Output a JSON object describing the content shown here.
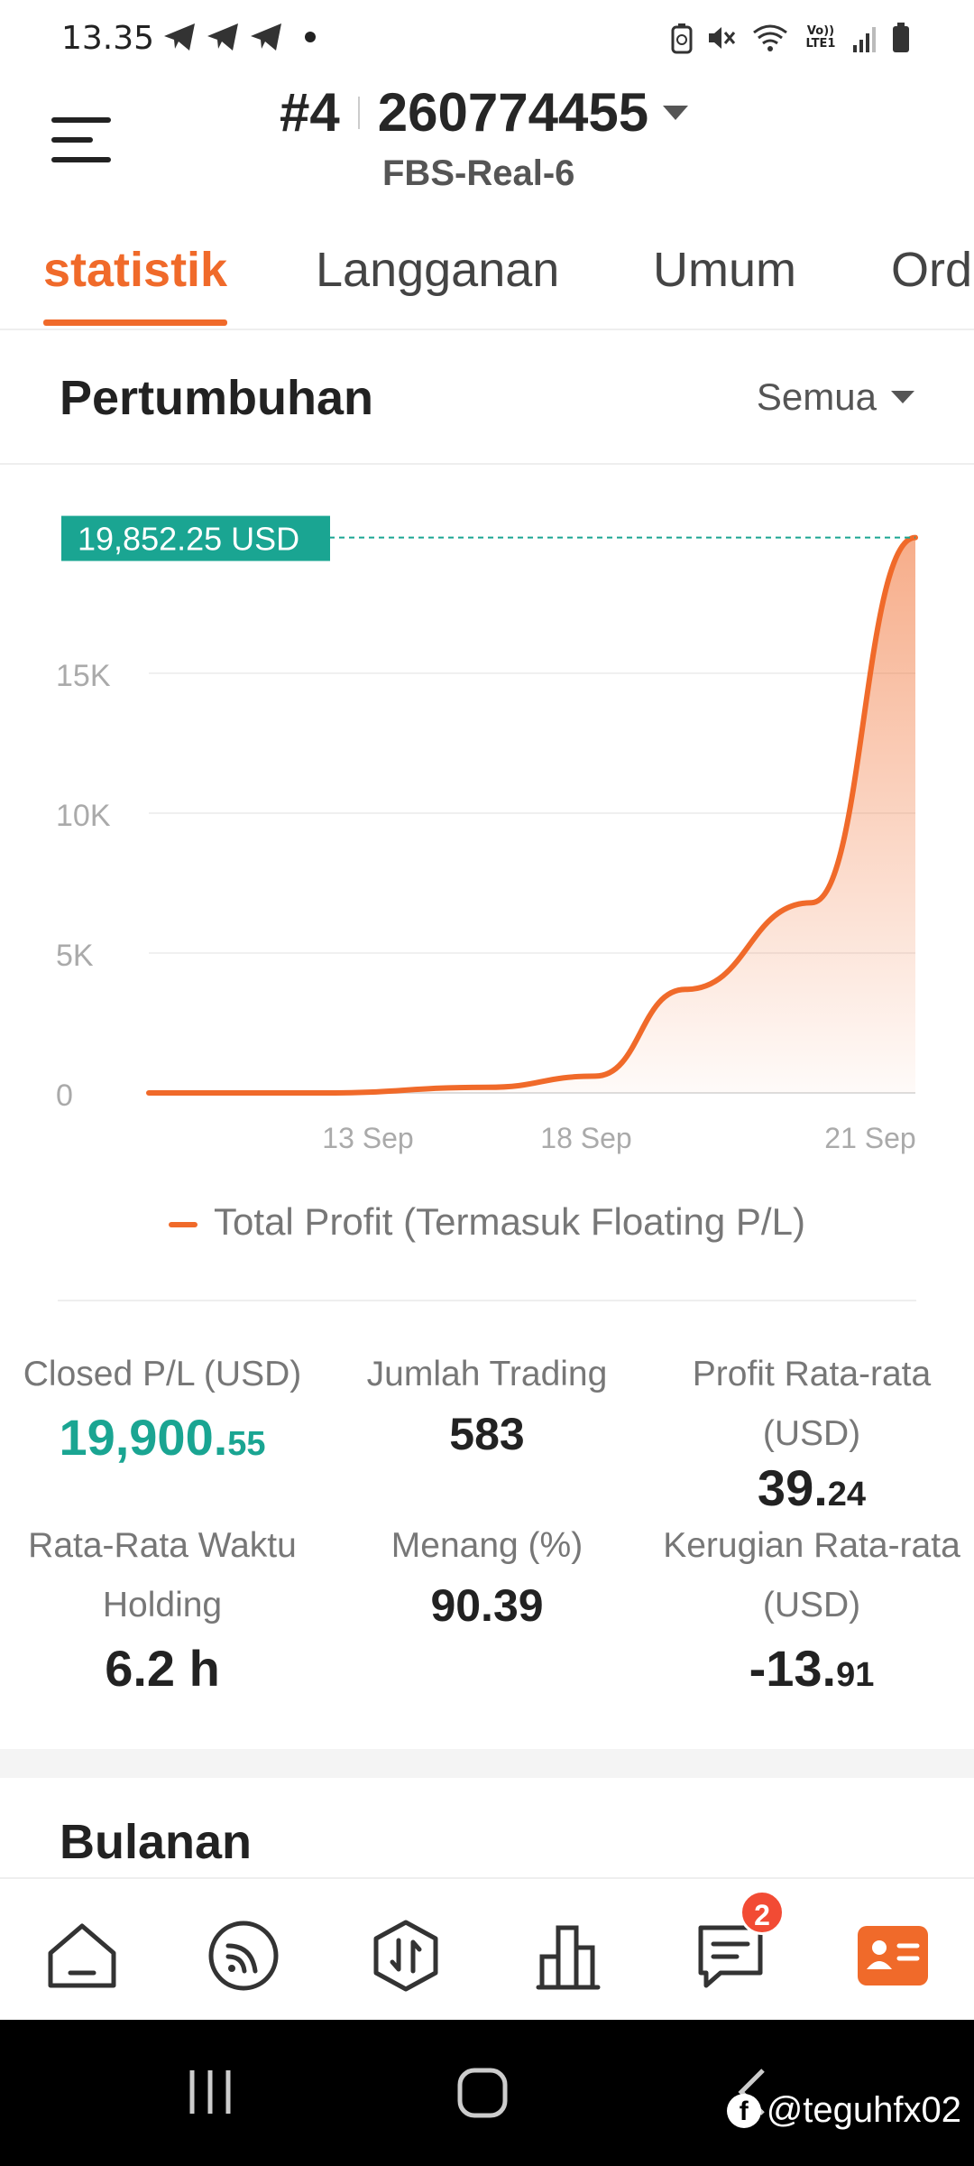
{
  "status_bar": {
    "time": "13.35",
    "network_label": "Vo)) LTE1"
  },
  "header": {
    "account_number": "#4",
    "account_id": "260774455",
    "server": "FBS-Real-6"
  },
  "tabs": [
    {
      "label": "statistik",
      "active": true
    },
    {
      "label": "Langganan",
      "active": false
    },
    {
      "label": "Umum",
      "active": false
    },
    {
      "label": "Ord",
      "active": false
    }
  ],
  "growth": {
    "title": "Pertumbuhan",
    "filter": "Semua"
  },
  "chart_data": {
    "type": "area",
    "x": [
      "start",
      "13 Sep",
      "15 Sep",
      "18 Sep",
      "19 Sep",
      "20 Sep",
      "21 Sep"
    ],
    "series": [
      {
        "name": "Total Profit (Termasuk Floating P/L)",
        "values": [
          0,
          0,
          200,
          600,
          3700,
          6800,
          19852.25
        ]
      }
    ],
    "x_tick_labels": [
      "13 Sep",
      "18 Sep",
      "21 Sep"
    ],
    "y_tick_labels": [
      "0",
      "5K",
      "10K",
      "15K"
    ],
    "ylim": [
      0,
      20000
    ],
    "latest_value_label": "19,852.25 USD",
    "grid": true,
    "legend": "bottom",
    "color": "#f06a2a"
  },
  "stats": {
    "closed_pl": {
      "label": "Closed P/L (USD)",
      "value_main": "19,900.",
      "value_dec": "55"
    },
    "total_trades": {
      "label": "Jumlah Trading",
      "value": "583"
    },
    "avg_profit": {
      "label1": "Profit Rata-rata",
      "label2": "(USD)",
      "value_main": "39.",
      "value_dec": "24"
    },
    "avg_holding": {
      "label1": "Rata-Rata Waktu",
      "label2": "Holding",
      "value": "6.2 h"
    },
    "win_rate": {
      "label": "Menang (%)",
      "value": "90.39"
    },
    "avg_loss": {
      "label1": "Kerugian Rata-rata",
      "label2": "(USD)",
      "value_main": "-13.",
      "value_dec": "91"
    }
  },
  "monthly": {
    "title": "Bulanan"
  },
  "bottom_nav": {
    "badge_count": "2",
    "active_color": "#f06a2a"
  },
  "watermark": {
    "text": "@teguhfx02"
  }
}
